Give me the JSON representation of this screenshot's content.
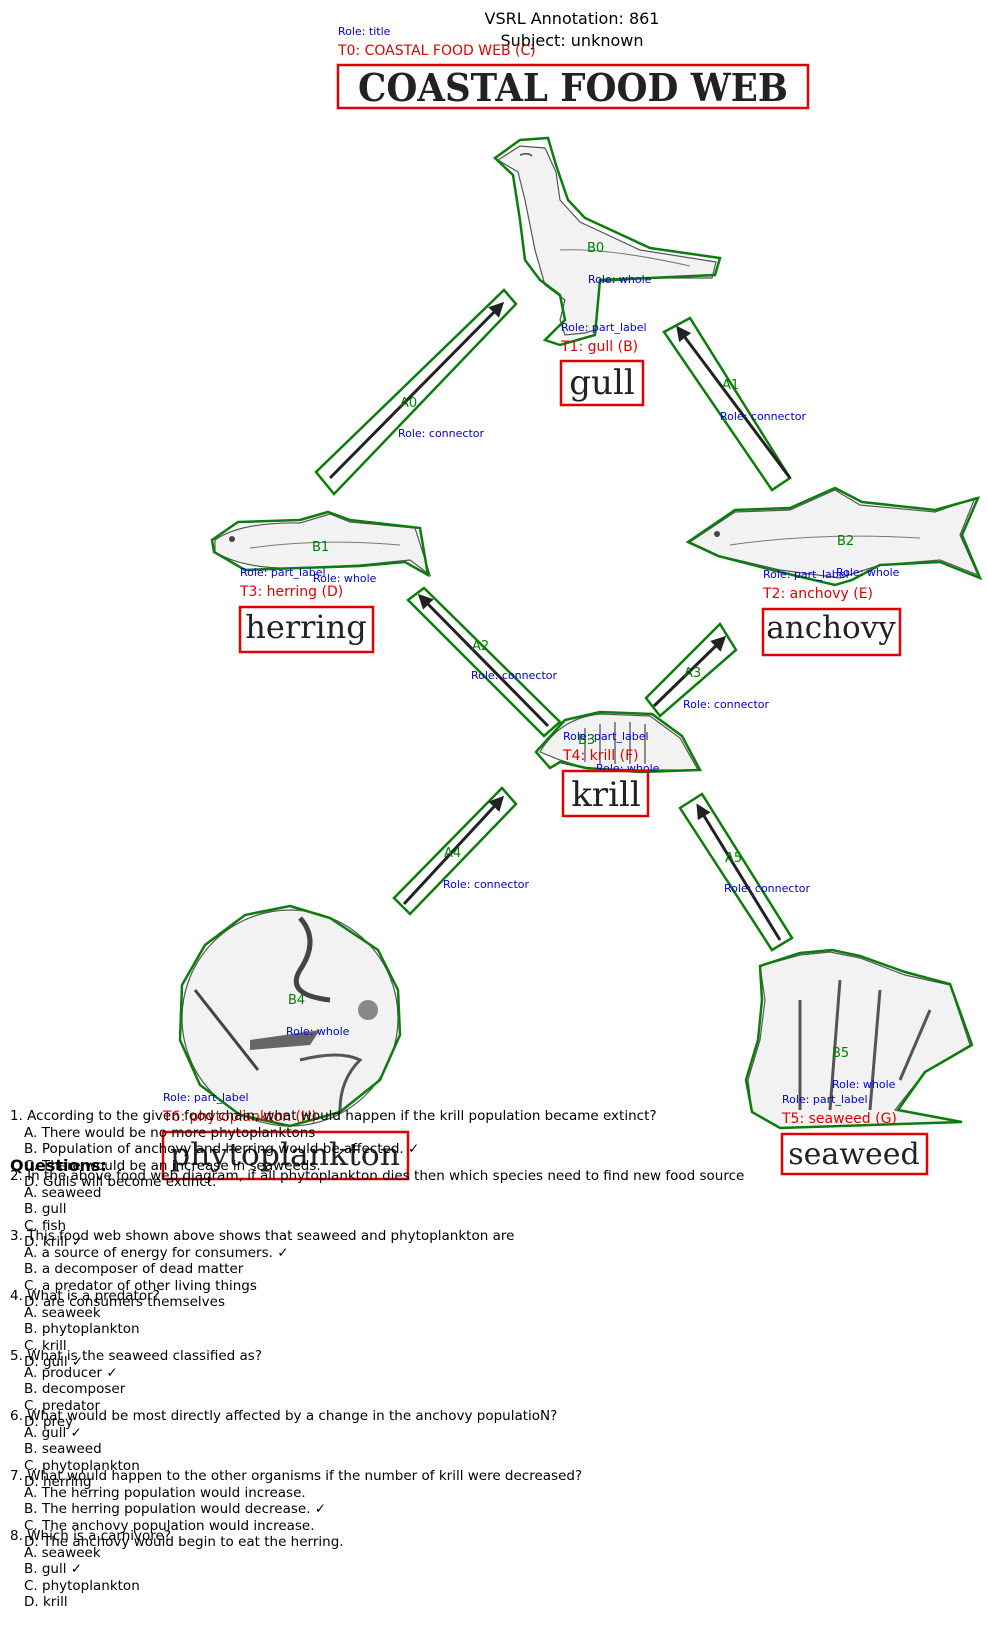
{
  "header": {
    "title": "VSRL Annotation: 861",
    "subject": "Subject: unknown"
  },
  "texts": [
    {
      "id": "T0",
      "tag": "T0: COASTAL FOOD WEB (C)",
      "role": "Role: title",
      "word": "COASTAL FOOD WEB"
    },
    {
      "id": "T1",
      "tag": "T1: gull (B)",
      "role": "Role: part_label",
      "word": "gull"
    },
    {
      "id": "T2",
      "tag": "T2: anchovy (E)",
      "role": "Role: part_label",
      "word": "anchovy"
    },
    {
      "id": "T3",
      "tag": "T3: herring (D)",
      "role": "Role: part_label",
      "word": "herring"
    },
    {
      "id": "T4",
      "tag": "T4: krill (F)",
      "role": "Role: part_label",
      "word": "krill"
    },
    {
      "id": "T5",
      "tag": "T5: seaweed (G)",
      "role": "Role: part_label",
      "word": "seaweed"
    },
    {
      "id": "T6",
      "tag": "T6: phytoplankton (H)",
      "role": "Role: part_label",
      "word": "phytoplankton"
    }
  ],
  "blobs": [
    {
      "id": "B0",
      "role": "Role: whole"
    },
    {
      "id": "B1",
      "role": "Role: whole"
    },
    {
      "id": "B2",
      "role": "Role: whole"
    },
    {
      "id": "B3",
      "role": "Role: whole"
    },
    {
      "id": "B4",
      "role": "Role: whole"
    },
    {
      "id": "B5",
      "role": "Role: whole"
    }
  ],
  "arrows": [
    {
      "id": "A0",
      "role": "Role: connector"
    },
    {
      "id": "A1",
      "role": "Role: connector"
    },
    {
      "id": "A2",
      "role": "Role: connector"
    },
    {
      "id": "A3",
      "role": "Role: connector"
    },
    {
      "id": "A4",
      "role": "Role: connector"
    },
    {
      "id": "A5",
      "role": "Role: connector"
    }
  ],
  "questions_heading": "Questions:",
  "questions": [
    {
      "q": "1. According to the given food chain, what would happen if the krill population became extinct?",
      "options": [
        "A. There would be no more phytoplanktons",
        "B. Population of anchovy and herring would be affected. ✓",
        "C. There would be an increase in seaweeds.",
        "D. Gulls will become extinct."
      ]
    },
    {
      "q": "2. In the above food web diagram, if all phytoplankton dies then which species need to find new food source",
      "options": [
        "A. seaweed",
        "B. gull",
        "C. fish",
        "D. krill ✓"
      ]
    },
    {
      "q": "3. This food web shown above shows that seaweed and phytoplankton are",
      "options": [
        "A. a source of energy for consumers. ✓",
        "B. a decomposer of dead matter",
        "C. a predator of other living things",
        "D. are consumers themselves"
      ]
    },
    {
      "q": "4. What is a predator?",
      "options": [
        "A. seaweek",
        "B. phytoplankton",
        "C. krill",
        "D. gull ✓"
      ]
    },
    {
      "q": "5. What is the seaweed classified as?",
      "options": [
        "A. producer ✓",
        "B. decomposer",
        "C. predator",
        "D. prey"
      ]
    },
    {
      "q": "6. What would be most directly affected by a change in the anchovy populatioN?",
      "options": [
        "A. gull ✓",
        "B. seaweed",
        "C. phytoplankton",
        "D. herring"
      ]
    },
    {
      "q": "7. What would happen to the other organisms if the number of krill were decreased?",
      "options": [
        "A. The herring population would increase.",
        "B. The herring population would decrease. ✓",
        "C. The anchovy population would increase.",
        "D. The anchovy would begin to eat the herring."
      ]
    },
    {
      "q": "8. Which is a carnivore?",
      "options": [
        "A. seaweek",
        "B. gull ✓",
        "C. phytoplankton",
        "D. krill"
      ]
    }
  ],
  "colors": {
    "text_box": "#e00000",
    "blob_polygon": "#0b7d0b",
    "role_text": "#0000cc",
    "blob_label": "#008000"
  }
}
